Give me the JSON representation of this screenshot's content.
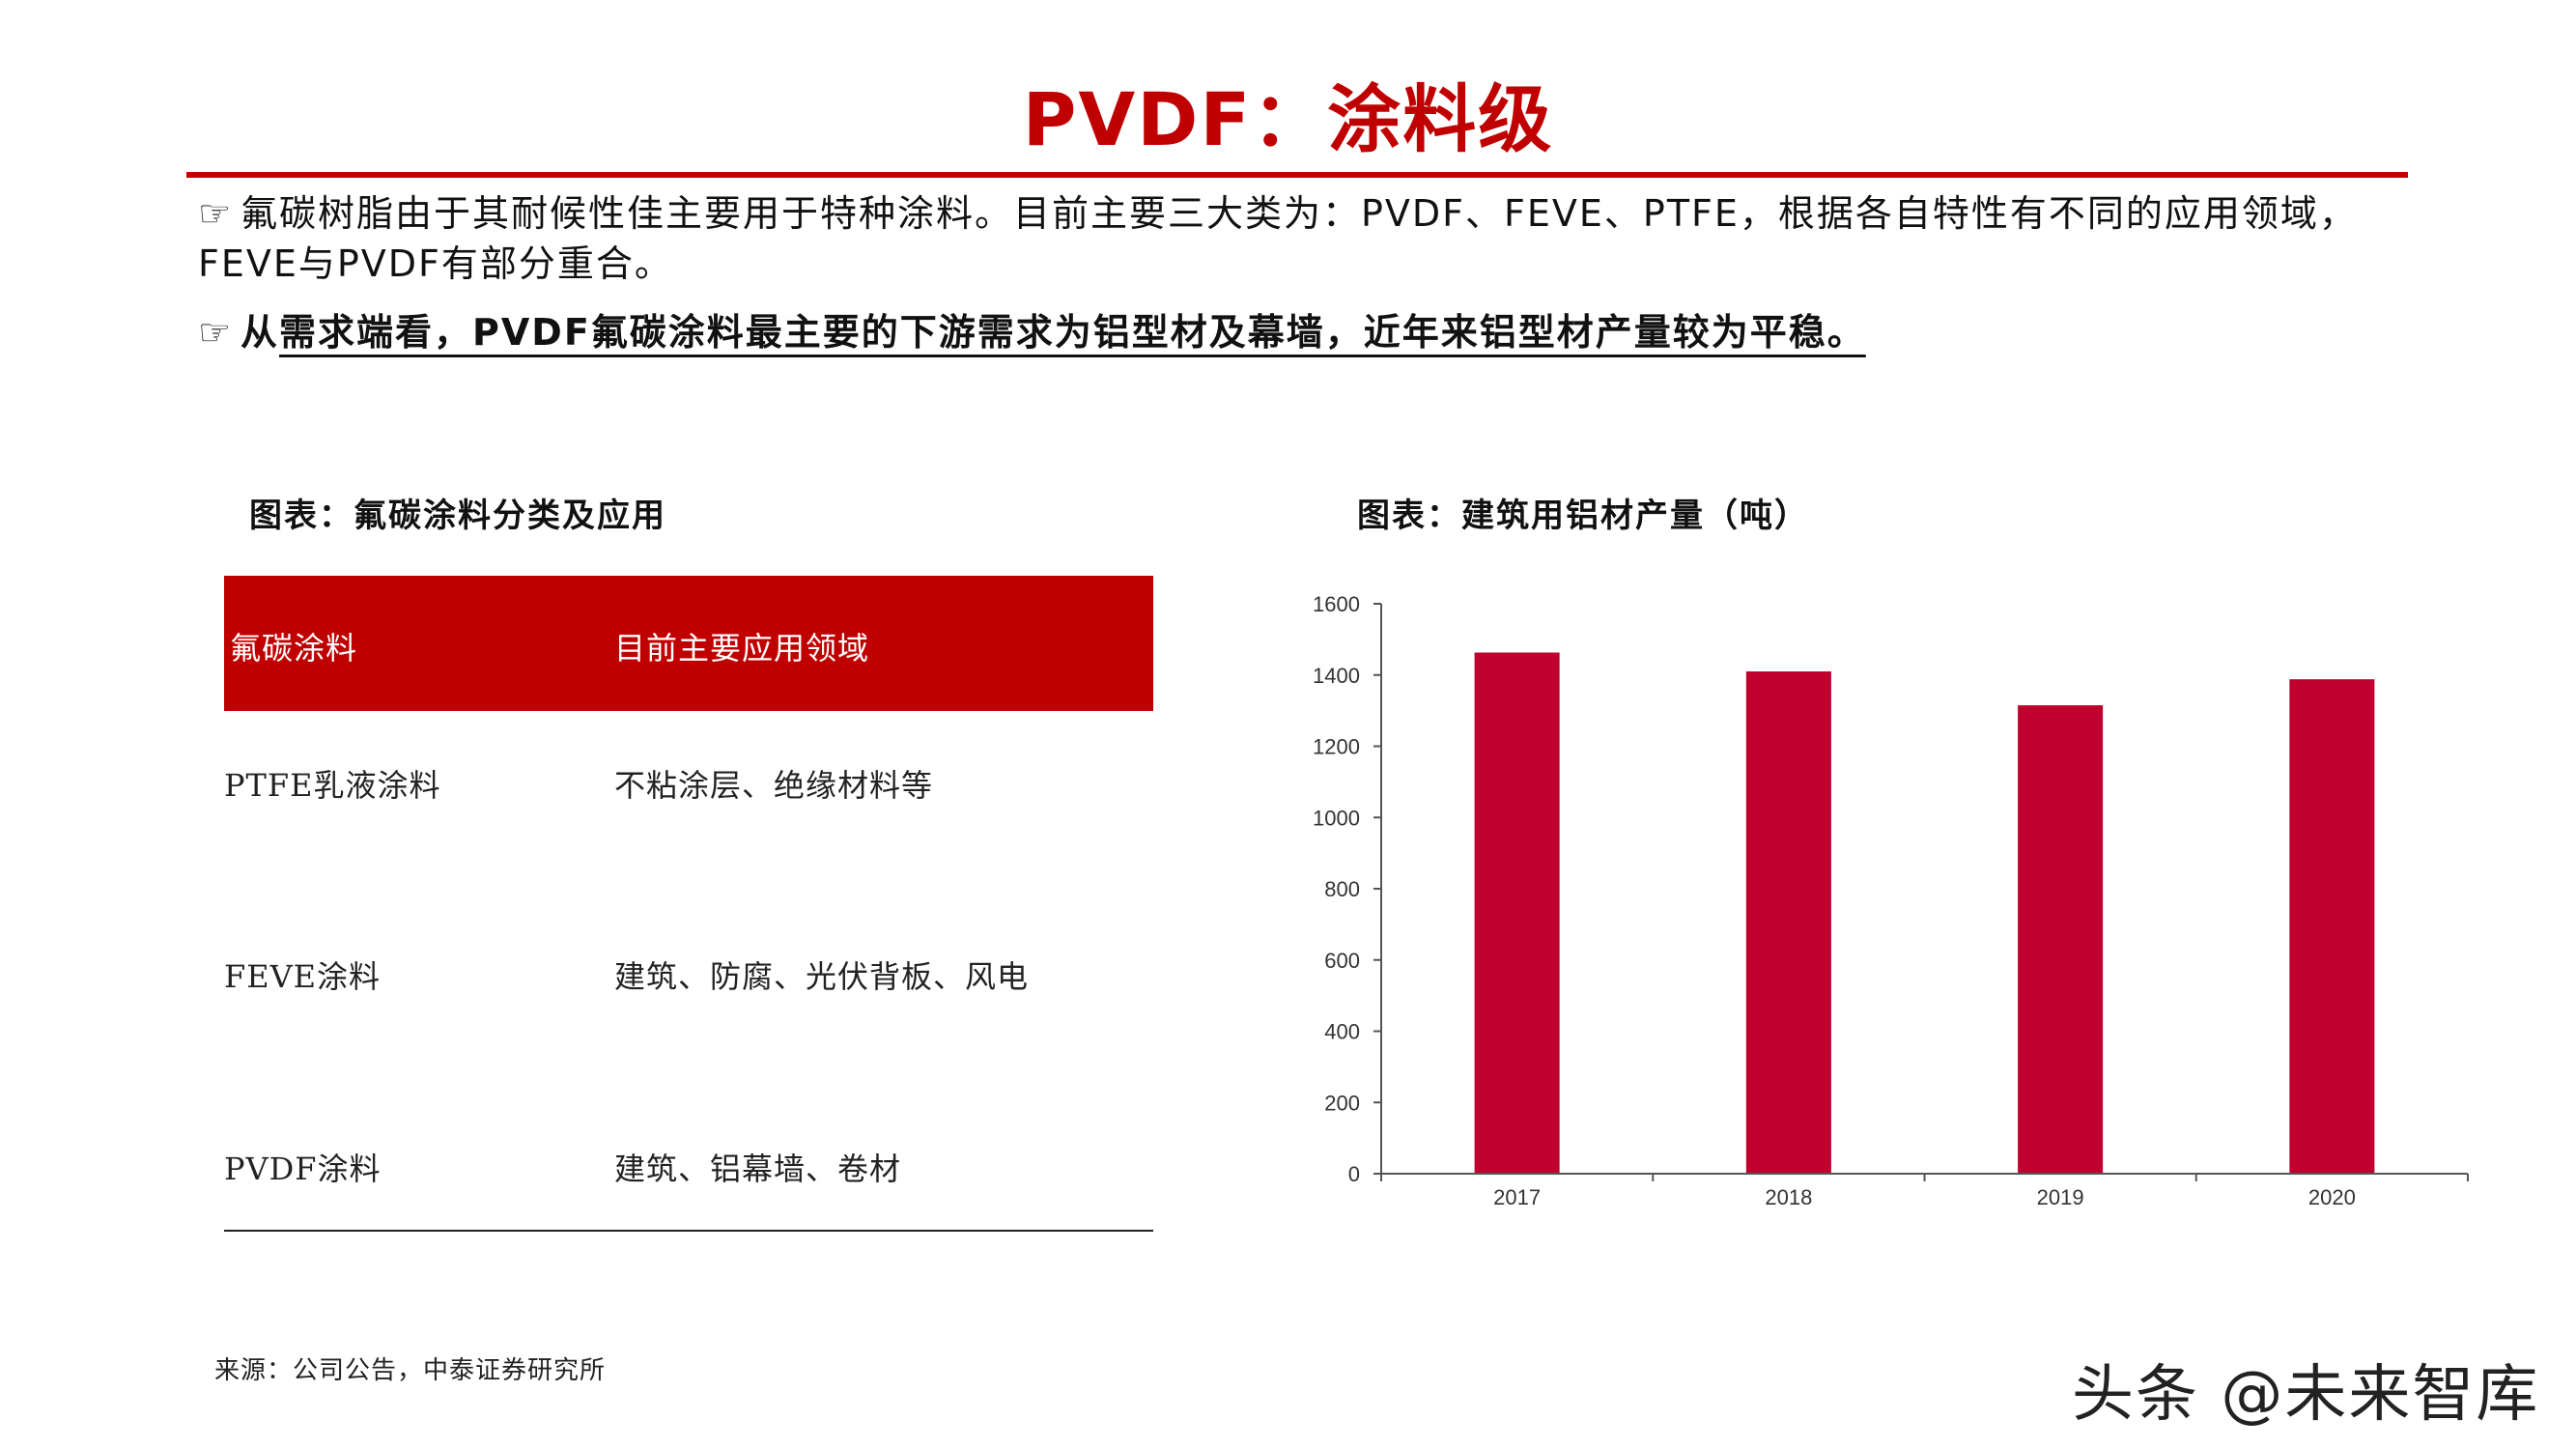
{
  "title": "PVDF：涂料级",
  "bullets": {
    "b1_icon": "☞",
    "b1_text": "氟碳树脂由于其耐候性佳主要用于特种涂料。目前主要三大类为：PVDF、FEVE、PTFE，根据各自特性有不同的应用领域，FEVE与PVDF有部分重合。",
    "b2_icon": "☞",
    "b2_prefix": "从",
    "b2_text": "需求端看，PVDF氟碳涂料最主要的下游需求为铝型材及幕墙，近年来铝型材产量较为平稳。"
  },
  "left_figure": {
    "title": "图表：氟碳涂料分类及应用",
    "table": {
      "headers": [
        "氟碳涂料",
        "目前主要应用领域"
      ],
      "rows": [
        [
          "PTFE乳液涂料",
          "不粘涂层、绝缘材料等"
        ],
        [
          "FEVE涂料",
          "建筑、防腐、光伏背板、风电"
        ],
        [
          "PVDF涂料",
          "建筑、铝幕墙、卷材"
        ]
      ]
    }
  },
  "right_figure": {
    "title": "图表：建筑用铝材产量（吨）"
  },
  "chart_data": {
    "type": "bar",
    "categories": [
      "2017",
      "2018",
      "2019",
      "2020"
    ],
    "values": [
      1463,
      1410,
      1315,
      1388
    ],
    "ylim": [
      0,
      1600
    ],
    "yticks": [
      0,
      200,
      400,
      600,
      800,
      1000,
      1200,
      1400,
      1600
    ],
    "grid": false,
    "color": "#c0002f"
  },
  "source": "来源：公司公告，中泰证券研究所",
  "watermark": "头条 @未来智库",
  "colors": {
    "accent": "#c00000",
    "bar": "#c0002f"
  }
}
